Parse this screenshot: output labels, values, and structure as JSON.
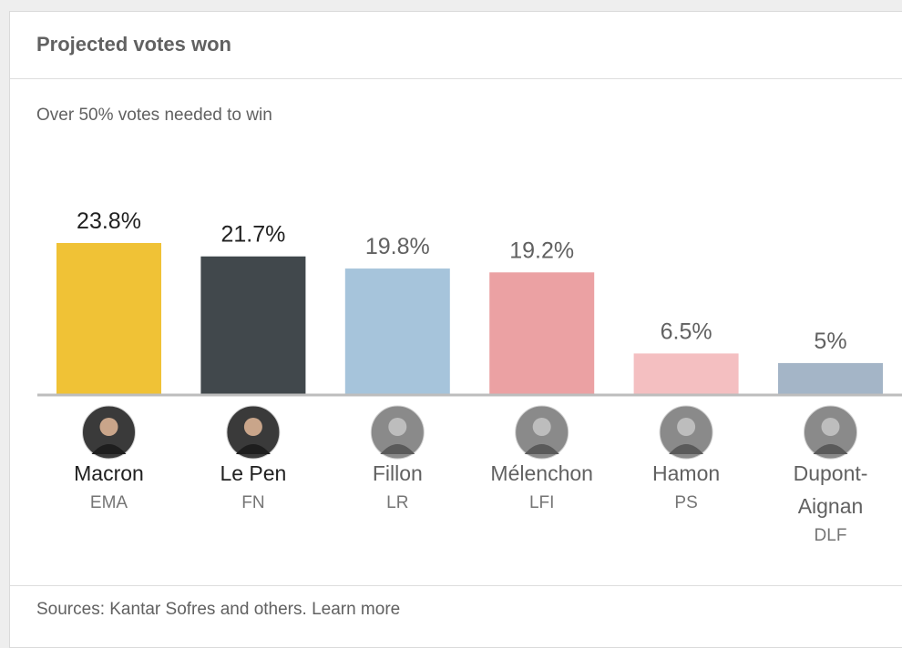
{
  "header": {
    "title": "Projected votes won"
  },
  "chart_data": {
    "type": "bar",
    "subtitle": "Over 50% votes needed to win",
    "categories": [
      "Macron",
      "Le Pen",
      "Fillon",
      "Mélenchon",
      "Hamon",
      "Dupont-Aignan"
    ],
    "parties": [
      "EMA",
      "FN",
      "LR",
      "LFI",
      "PS",
      "DLF"
    ],
    "values": [
      23.8,
      21.7,
      19.8,
      19.2,
      6.5,
      5
    ],
    "value_labels": [
      "23.8%",
      "21.7%",
      "19.8%",
      "19.2%",
      "6.5%",
      "5%"
    ],
    "colors": [
      "#f0c236",
      "#41484c",
      "#a6c4db",
      "#eba1a3",
      "#f4bfc1",
      "#a4b5c7"
    ],
    "highlighted": [
      true,
      true,
      false,
      false,
      false,
      false
    ],
    "label_colors": {
      "highlighted": "#212121",
      "normal": "#616161"
    },
    "ylim": [
      0,
      23.8
    ],
    "grid": false,
    "xlabel": "",
    "ylabel": ""
  },
  "footer": {
    "source_text": "Sources: Kantar Sofres and others.",
    "link_label": "Learn more"
  }
}
